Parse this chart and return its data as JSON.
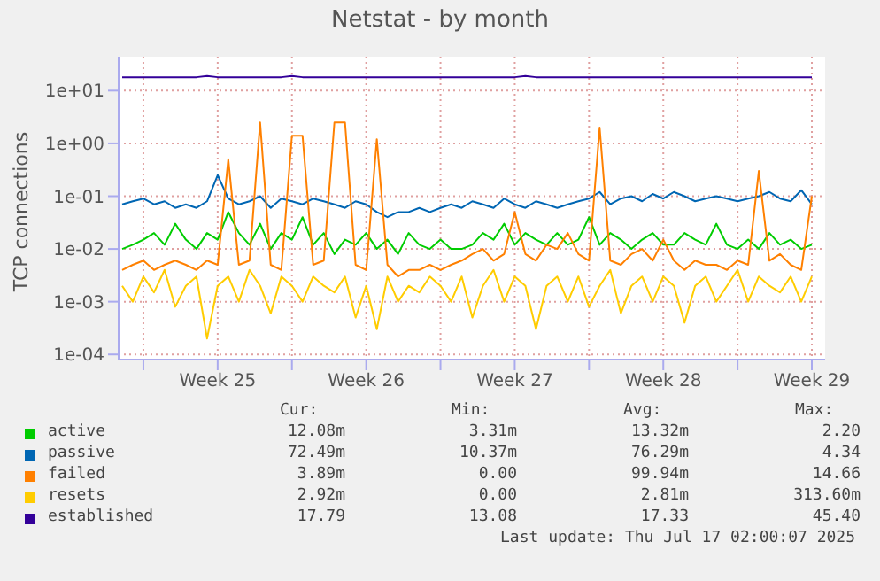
{
  "chart_data": {
    "type": "line",
    "title": "Netstat - by month",
    "ylabel": "TCP connections",
    "log": "y",
    "grid": true,
    "legend": "bottom",
    "marker": "none",
    "line_style": "solid",
    "xlim": [
      "2025-06-14T20:00",
      "2025-07-18T03:00"
    ],
    "xticks": [
      {
        "value": "2025-06-16T00:00",
        "label": null
      },
      {
        "value": "2025-06-19T12:00",
        "label": "Week 25"
      },
      {
        "value": "2025-06-23T00:00",
        "label": null
      },
      {
        "value": "2025-06-26T12:00",
        "label": "Week 26"
      },
      {
        "value": "2025-06-30T00:00",
        "label": null
      },
      {
        "value": "2025-07-03T12:00",
        "label": "Week 27"
      },
      {
        "value": "2025-07-07T00:00",
        "label": null
      },
      {
        "value": "2025-07-10T12:00",
        "label": "Week 28"
      },
      {
        "value": "2025-07-14T00:00",
        "label": null
      },
      {
        "value": "2025-07-17T12:00",
        "label": "Week 29"
      }
    ],
    "ylim": [
      8e-05,
      44
    ],
    "yticks": [
      {
        "value": 0.0001,
        "label": "1e-04"
      },
      {
        "value": 0.001,
        "label": "1e-03"
      },
      {
        "value": 0.01,
        "label": "1e-02"
      },
      {
        "value": 0.1,
        "label": "1e-01"
      },
      {
        "value": 1,
        "label": "1e+00"
      },
      {
        "value": 10,
        "label": "1e+01"
      }
    ],
    "x": [
      "2025-06-15T00:00",
      "2025-06-15T12:00",
      "2025-06-16T00:00",
      "2025-06-16T12:00",
      "2025-06-17T00:00",
      "2025-06-17T12:00",
      "2025-06-18T00:00",
      "2025-06-18T12:00",
      "2025-06-19T00:00",
      "2025-06-19T12:00",
      "2025-06-20T00:00",
      "2025-06-20T12:00",
      "2025-06-21T00:00",
      "2025-06-21T12:00",
      "2025-06-22T00:00",
      "2025-06-22T12:00",
      "2025-06-23T00:00",
      "2025-06-23T12:00",
      "2025-06-24T00:00",
      "2025-06-24T12:00",
      "2025-06-25T00:00",
      "2025-06-25T12:00",
      "2025-06-26T00:00",
      "2025-06-26T12:00",
      "2025-06-27T00:00",
      "2025-06-27T12:00",
      "2025-06-28T00:00",
      "2025-06-28T12:00",
      "2025-06-29T00:00",
      "2025-06-29T12:00",
      "2025-06-30T00:00",
      "2025-06-30T12:00",
      "2025-07-01T00:00",
      "2025-07-01T12:00",
      "2025-07-02T00:00",
      "2025-07-02T12:00",
      "2025-07-03T00:00",
      "2025-07-03T12:00",
      "2025-07-04T00:00",
      "2025-07-04T12:00",
      "2025-07-05T00:00",
      "2025-07-05T12:00",
      "2025-07-06T00:00",
      "2025-07-06T12:00",
      "2025-07-07T00:00",
      "2025-07-07T12:00",
      "2025-07-08T00:00",
      "2025-07-08T12:00",
      "2025-07-09T00:00",
      "2025-07-09T12:00",
      "2025-07-10T00:00",
      "2025-07-10T12:00",
      "2025-07-11T00:00",
      "2025-07-11T12:00",
      "2025-07-12T00:00",
      "2025-07-12T12:00",
      "2025-07-13T00:00",
      "2025-07-13T12:00",
      "2025-07-14T00:00",
      "2025-07-14T12:00",
      "2025-07-15T00:00",
      "2025-07-15T12:00",
      "2025-07-16T00:00",
      "2025-07-16T12:00",
      "2025-07-17T00:00",
      "2025-07-17T12:00"
    ],
    "series": [
      {
        "name": "active",
        "color": "#00cc00",
        "values": [
          0.01,
          0.012,
          0.015,
          0.02,
          0.012,
          0.03,
          0.015,
          0.01,
          0.02,
          0.015,
          0.05,
          0.02,
          0.012,
          0.03,
          0.01,
          0.02,
          0.015,
          0.04,
          0.012,
          0.02,
          0.008,
          0.015,
          0.012,
          0.02,
          0.01,
          0.015,
          0.008,
          0.02,
          0.012,
          0.01,
          0.015,
          0.01,
          0.01,
          0.012,
          0.02,
          0.015,
          0.03,
          0.012,
          0.02,
          0.015,
          0.012,
          0.02,
          0.012,
          0.015,
          0.04,
          0.012,
          0.02,
          0.015,
          0.01,
          0.015,
          0.02,
          0.012,
          0.012,
          0.02,
          0.015,
          0.012,
          0.03,
          0.012,
          0.01,
          0.015,
          0.01,
          0.02,
          0.012,
          0.015,
          0.01,
          0.012
        ]
      },
      {
        "name": "passive",
        "color": "#0066b3",
        "values": [
          0.07,
          0.08,
          0.09,
          0.07,
          0.08,
          0.06,
          0.07,
          0.06,
          0.08,
          0.25,
          0.09,
          0.07,
          0.08,
          0.1,
          0.06,
          0.09,
          0.08,
          0.07,
          0.09,
          0.08,
          0.07,
          0.06,
          0.08,
          0.07,
          0.05,
          0.04,
          0.05,
          0.05,
          0.06,
          0.05,
          0.06,
          0.07,
          0.06,
          0.08,
          0.07,
          0.06,
          0.09,
          0.07,
          0.06,
          0.08,
          0.07,
          0.06,
          0.07,
          0.08,
          0.09,
          0.12,
          0.07,
          0.09,
          0.1,
          0.08,
          0.11,
          0.09,
          0.12,
          0.1,
          0.08,
          0.09,
          0.1,
          0.09,
          0.08,
          0.09,
          0.1,
          0.12,
          0.09,
          0.08,
          0.13,
          0.07
        ]
      },
      {
        "name": "failed",
        "color": "#ff8000",
        "values": [
          0.004,
          0.005,
          0.006,
          0.004,
          0.005,
          0.006,
          0.005,
          0.004,
          0.006,
          0.005,
          0.5,
          0.005,
          0.006,
          2.5,
          0.005,
          0.004,
          1.4,
          1.4,
          0.005,
          0.006,
          2.5,
          2.5,
          0.005,
          0.004,
          1.2,
          0.005,
          0.003,
          0.004,
          0.004,
          0.005,
          0.004,
          0.005,
          0.006,
          0.008,
          0.01,
          0.006,
          0.008,
          0.05,
          0.008,
          0.006,
          0.012,
          0.01,
          0.02,
          0.008,
          0.006,
          2.0,
          0.006,
          0.005,
          0.008,
          0.01,
          0.006,
          0.015,
          0.006,
          0.004,
          0.006,
          0.005,
          0.005,
          0.004,
          0.006,
          0.005,
          0.3,
          0.006,
          0.008,
          0.005,
          0.004,
          0.1
        ]
      },
      {
        "name": "resets",
        "color": "#ffcc00",
        "values": [
          0.002,
          0.001,
          0.003,
          0.0015,
          0.004,
          0.0008,
          0.002,
          0.003,
          0.0002,
          0.002,
          0.003,
          0.001,
          0.004,
          0.002,
          0.0006,
          0.003,
          0.002,
          0.001,
          0.003,
          0.002,
          0.0015,
          0.003,
          0.0005,
          0.002,
          0.0003,
          0.003,
          0.001,
          0.002,
          0.0015,
          0.003,
          0.002,
          0.001,
          0.003,
          0.0005,
          0.002,
          0.004,
          0.001,
          0.003,
          0.002,
          0.0003,
          0.002,
          0.003,
          0.001,
          0.003,
          0.0008,
          0.002,
          0.004,
          0.0006,
          0.002,
          0.003,
          0.001,
          0.003,
          0.002,
          0.0004,
          0.002,
          0.003,
          0.001,
          0.002,
          0.004,
          0.001,
          0.003,
          0.002,
          0.0015,
          0.003,
          0.001,
          0.003
        ]
      },
      {
        "name": "established",
        "color": "#330099",
        "values": [
          18,
          18,
          18,
          18,
          18,
          18,
          18,
          18,
          19,
          18,
          18,
          18,
          18,
          18,
          18,
          18,
          19,
          18,
          18,
          18,
          18,
          18,
          18,
          18,
          18,
          18,
          18,
          18,
          18,
          18,
          18,
          18,
          18,
          18,
          18,
          18,
          18,
          18,
          19,
          18,
          18,
          18,
          18,
          18,
          18,
          18,
          18,
          18,
          18,
          18,
          18,
          18,
          18,
          18,
          18,
          18,
          18,
          18,
          18,
          18,
          18,
          18,
          18,
          18,
          18,
          18
        ]
      }
    ],
    "annotations": [
      "Cur:",
      "Min:",
      "Avg:",
      "Max:",
      "12.08m",
      "3.31m",
      "13.32m",
      "2.20",
      "72.49m",
      "10.37m",
      "76.29m",
      "4.34",
      "3.89m",
      "0.00",
      "99.94m",
      "14.66",
      "2.92m",
      "0.00",
      "2.81m",
      "313.60m",
      "17.79",
      "13.08",
      "17.33",
      "45.40",
      "Last update: Thu Jul 17 02:00:07 2025"
    ]
  }
}
